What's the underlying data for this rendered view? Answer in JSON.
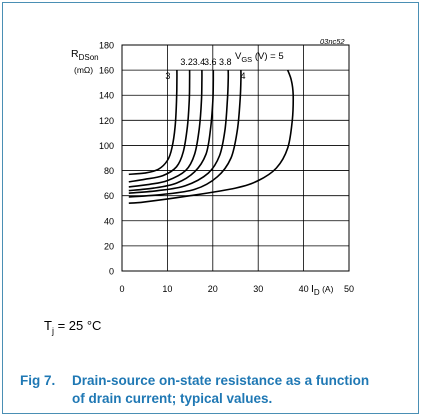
{
  "figure": {
    "fig_label": "Fig 7.",
    "caption_line1": "Drain-source on-state resistance as a function",
    "caption_line2": "of drain current; typical values.",
    "id_tag": "03nc52",
    "condition_prefix": "T",
    "condition_sub": "j",
    "condition_value": " = 25 °C"
  },
  "colors": {
    "border": "#4a8fb4",
    "caption": "#1f78b4",
    "curve": "#000000",
    "grid": "#000000"
  },
  "chart_data": {
    "type": "line",
    "title": "",
    "xlabel": {
      "main": "I",
      "sub": "D",
      "unit": " (A)"
    },
    "ylabel": {
      "main": "R",
      "sub": "DSon",
      "unit": "(mΩ)"
    },
    "xlim": [
      0,
      50
    ],
    "ylim": [
      0,
      180
    ],
    "x_ticks": [
      0,
      10,
      20,
      30,
      40,
      50
    ],
    "y_ticks": [
      0,
      20,
      40,
      60,
      80,
      100,
      120,
      140,
      160,
      180
    ],
    "grid": true,
    "legend_header": "VGS (V) = 5",
    "series": [
      {
        "name": "3",
        "label": "3",
        "x": [
          1.5,
          5,
          8,
          10,
          11,
          11.7,
          12,
          12.1,
          12.1
        ],
        "y": [
          77,
          78,
          81,
          88,
          98,
          115,
          135,
          152,
          160
        ]
      },
      {
        "name": "3.2",
        "label": "3.2",
        "x": [
          1.5,
          5,
          9,
          12,
          13.5,
          14.4,
          14.8,
          14.9,
          14.9
        ],
        "y": [
          71,
          73,
          76,
          83,
          95,
          115,
          135,
          152,
          160
        ]
      },
      {
        "name": "3.4",
        "label": "3.4",
        "x": [
          1.5,
          6,
          10,
          14,
          16,
          17,
          17.5,
          17.6,
          17.6
        ],
        "y": [
          67,
          69,
          72,
          80,
          93,
          113,
          135,
          152,
          160
        ]
      },
      {
        "name": "3.6",
        "label": "3.6",
        "x": [
          1.5,
          7,
          12,
          16,
          18.5,
          19.5,
          20,
          20.1,
          20.1
        ],
        "y": [
          64,
          66,
          70,
          79,
          93,
          113,
          135,
          152,
          160
        ]
      },
      {
        "name": "3.8",
        "label": "3.8",
        "x": [
          1.5,
          8,
          14,
          19,
          21.5,
          22.7,
          23.2,
          23.4,
          23.4
        ],
        "y": [
          62,
          64,
          68,
          78,
          92,
          113,
          135,
          152,
          160
        ]
      },
      {
        "name": "4",
        "label": "4",
        "x": [
          1.5,
          9,
          16,
          21,
          24,
          25.4,
          26,
          26.2,
          26.2
        ],
        "y": [
          59,
          61,
          65,
          75,
          90,
          112,
          135,
          152,
          160
        ]
      },
      {
        "name": "5",
        "label": "",
        "x": [
          1.5,
          5,
          15,
          25,
          30,
          34,
          36.5,
          37.5,
          37.7,
          37.3,
          36.5
        ],
        "y": [
          54,
          55,
          60,
          66,
          72,
          82,
          98,
          120,
          140,
          152,
          160
        ]
      }
    ]
  }
}
